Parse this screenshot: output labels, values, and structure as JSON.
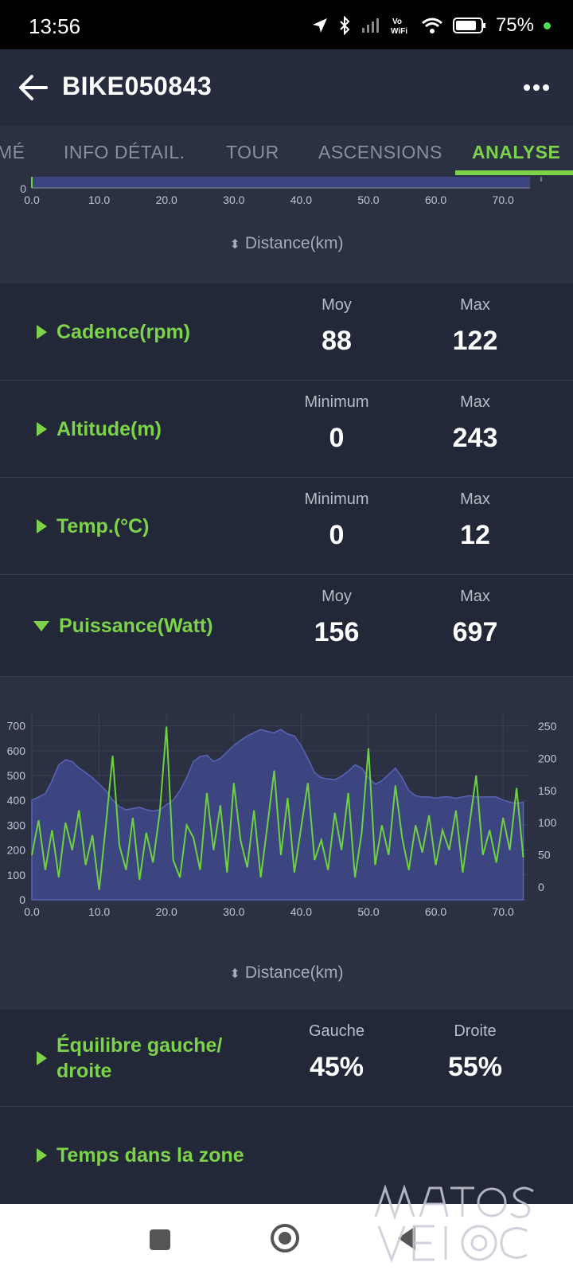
{
  "status_bar": {
    "time": "13:56",
    "battery": "75%"
  },
  "app_bar": {
    "title": "BIKE050843"
  },
  "tabs": [
    {
      "label": "MÉ"
    },
    {
      "label": "INFO DÉTAIL."
    },
    {
      "label": "TOUR"
    },
    {
      "label": "ASCENSIONS"
    },
    {
      "label": "ANALYSE",
      "active": true
    }
  ],
  "top_chart": {
    "axis_label": "Distance(km)"
  },
  "stats": [
    {
      "title": "Cadence(rpm)",
      "expanded": false,
      "label1": "Moy",
      "value1": "88",
      "label2": "Max",
      "value2": "122"
    },
    {
      "title": "Altitude(m)",
      "expanded": false,
      "label1": "Minimum",
      "value1": "0",
      "label2": "Max",
      "value2": "243"
    },
    {
      "title": "Temp.(°C)",
      "expanded": false,
      "label1": "Minimum",
      "value1": "0",
      "label2": "Max",
      "value2": "12"
    },
    {
      "title": "Puissance(Watt)",
      "expanded": true,
      "label1": "Moy",
      "value1": "156",
      "label2": "Max",
      "value2": "697"
    },
    {
      "title": "Équilibre gauche/ droite",
      "expanded": false,
      "label1": "Gauche",
      "value1": "45%",
      "label2": "Droite",
      "value2": "55%"
    },
    {
      "title": "Temps dans la zone",
      "expanded": false
    }
  ],
  "chart_data": [
    {
      "type": "line",
      "x_ticks": [
        "0.0",
        "10.0",
        "20.0",
        "30.0",
        "40.0",
        "50.0",
        "60.0",
        "70.0"
      ],
      "y_ticks_visible": [
        "0"
      ],
      "xlabel": "Distance(km)",
      "xlim": [
        0,
        74
      ]
    },
    {
      "type": "area",
      "xlabel": "Distance(km)",
      "xlim": [
        0,
        74
      ],
      "x_ticks": [
        "0.0",
        "10.0",
        "20.0",
        "30.0",
        "40.0",
        "50.0",
        "60.0",
        "70.0"
      ],
      "y_left_ticks": [
        "0",
        "100",
        "200",
        "300",
        "400",
        "500",
        "600",
        "700"
      ],
      "y_left_lim": [
        0,
        750
      ],
      "y_right_ticks": [
        "0",
        "50",
        "100",
        "150",
        "200",
        "250"
      ],
      "y_right_lim": [
        -20,
        270
      ],
      "colors": {
        "power": "#6cd33e",
        "altitude_fill": "#3d4580",
        "altitude_line": "#5a63b8",
        "grid": "#3b4152"
      },
      "series": [
        {
          "axis": "right",
          "style": "area",
          "x": [
            0,
            1,
            2,
            3,
            4,
            5,
            6,
            7,
            8,
            9,
            10,
            11,
            12,
            13,
            14,
            15,
            16,
            17,
            18,
            19,
            20,
            21,
            22,
            23,
            24,
            25,
            26,
            27,
            28,
            29,
            30,
            31,
            32,
            33,
            34,
            35,
            36,
            37,
            38,
            39,
            40,
            41,
            42,
            43,
            44,
            45,
            46,
            47,
            48,
            49,
            50,
            51,
            52,
            53,
            54,
            55,
            56,
            57,
            58,
            59,
            60,
            61,
            62,
            63,
            64,
            65,
            66,
            67,
            68,
            69,
            70,
            71,
            72,
            73
          ],
          "y": [
            135,
            140,
            145,
            165,
            190,
            198,
            195,
            185,
            178,
            170,
            160,
            150,
            135,
            125,
            120,
            122,
            124,
            120,
            118,
            120,
            128,
            135,
            150,
            170,
            195,
            203,
            205,
            195,
            200,
            210,
            220,
            228,
            235,
            240,
            245,
            242,
            240,
            245,
            238,
            235,
            220,
            200,
            178,
            170,
            168,
            167,
            172,
            180,
            190,
            185,
            170,
            160,
            165,
            175,
            185,
            170,
            150,
            142,
            140,
            140,
            138,
            140,
            140,
            138,
            140,
            142,
            140,
            140,
            140,
            140,
            135,
            132,
            130,
            132
          ]
        },
        {
          "axis": "left",
          "style": "line",
          "x": [
            0,
            1,
            2,
            3,
            4,
            5,
            6,
            7,
            8,
            9,
            10,
            11,
            12,
            13,
            14,
            15,
            16,
            17,
            18,
            19,
            20,
            21,
            22,
            23,
            24,
            25,
            26,
            27,
            28,
            29,
            30,
            31,
            32,
            33,
            34,
            35,
            36,
            37,
            38,
            39,
            40,
            41,
            42,
            43,
            44,
            45,
            46,
            47,
            48,
            49,
            50,
            51,
            52,
            53,
            54,
            55,
            56,
            57,
            58,
            59,
            60,
            61,
            62,
            63,
            64,
            65,
            66,
            67,
            68,
            69,
            70,
            71,
            72,
            73
          ],
          "y": [
            180,
            320,
            120,
            280,
            90,
            310,
            200,
            360,
            140,
            260,
            40,
            300,
            580,
            220,
            120,
            330,
            80,
            270,
            150,
            350,
            697,
            160,
            90,
            300,
            250,
            120,
            430,
            200,
            380,
            110,
            470,
            240,
            130,
            360,
            90,
            300,
            520,
            180,
            410,
            110,
            290,
            470,
            160,
            240,
            120,
            350,
            200,
            430,
            90,
            270,
            610,
            140,
            300,
            180,
            460,
            250,
            120,
            300,
            190,
            340,
            140,
            280,
            200,
            360,
            110,
            300,
            500,
            180,
            280,
            150,
            330,
            200,
            450,
            170
          ]
        }
      ]
    }
  ]
}
